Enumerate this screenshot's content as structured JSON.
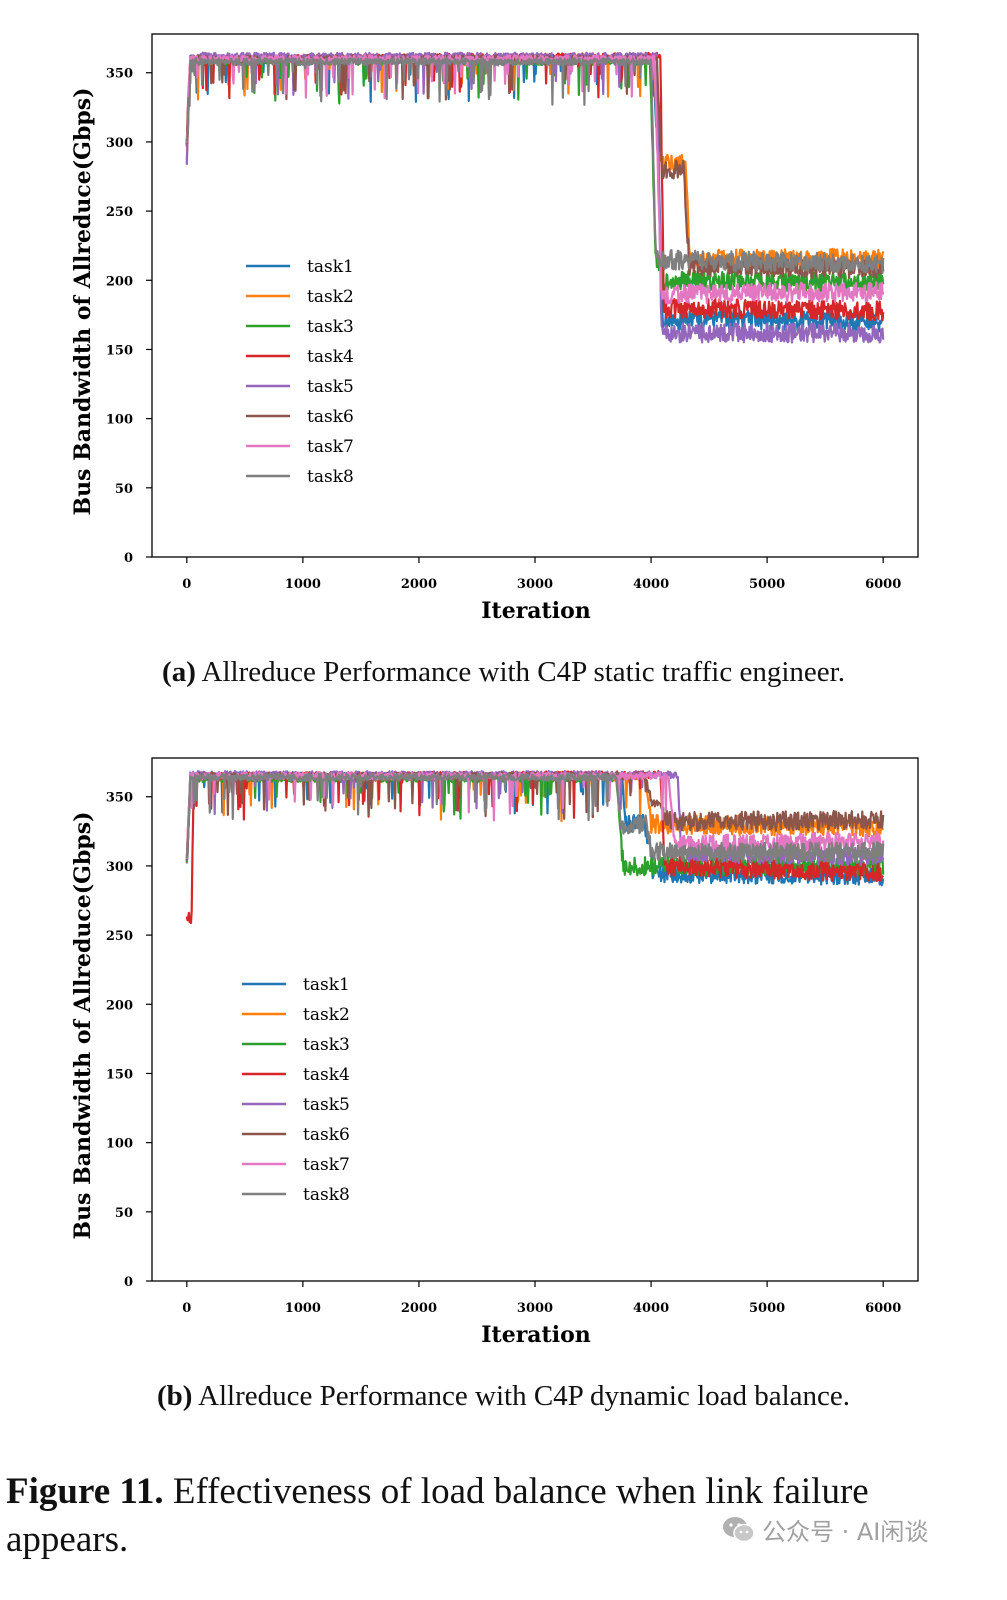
{
  "chart_data": [
    {
      "type": "line",
      "panel_label": "(a)",
      "caption": "Allreduce Performance with C4P static traffic engineer.",
      "xlabel": "Iteration",
      "ylabel": "Bus Bandwidth of Allreduce(Gbps)",
      "xlim": [
        -300,
        6300
      ],
      "ylim": [
        0,
        378
      ],
      "xticks": [
        0,
        1000,
        2000,
        3000,
        4000,
        5000,
        6000
      ],
      "yticks": [
        0,
        50,
        100,
        150,
        200,
        250,
        300,
        350
      ],
      "grid": false,
      "legend_position": "center-left",
      "series": [
        {
          "name": "task1",
          "color": "#1f77b4",
          "points": [
            [
              0,
              300
            ],
            [
              30,
              360
            ],
            [
              4000,
              360
            ],
            [
              4060,
              300
            ],
            [
              4100,
              170
            ],
            [
              4300,
              172
            ],
            [
              6000,
              170
            ]
          ]
        },
        {
          "name": "task2",
          "color": "#ff7f0e",
          "points": [
            [
              0,
              290
            ],
            [
              30,
              360
            ],
            [
              4020,
              360
            ],
            [
              4080,
              285
            ],
            [
              4300,
              285
            ],
            [
              4330,
              215
            ],
            [
              6000,
              216
            ]
          ]
        },
        {
          "name": "task3",
          "color": "#2ca02c",
          "points": [
            [
              0,
              300
            ],
            [
              30,
              358
            ],
            [
              3990,
              358
            ],
            [
              4040,
              215
            ],
            [
              4100,
              200
            ],
            [
              6000,
              198
            ]
          ]
        },
        {
          "name": "task4",
          "color": "#d62728",
          "points": [
            [
              0,
              300
            ],
            [
              30,
              360
            ],
            [
              4080,
              362
            ],
            [
              4110,
              180
            ],
            [
              6000,
              178
            ]
          ]
        },
        {
          "name": "task5",
          "color": "#9467bd",
          "points": [
            [
              0,
              285
            ],
            [
              30,
              362
            ],
            [
              4050,
              362
            ],
            [
              4090,
              162
            ],
            [
              6000,
              162
            ]
          ]
        },
        {
          "name": "task6",
          "color": "#8c564b",
          "points": [
            [
              0,
              300
            ],
            [
              30,
              360
            ],
            [
              4050,
              360
            ],
            [
              4090,
              280
            ],
            [
              4280,
              280
            ],
            [
              4330,
              210
            ],
            [
              6000,
              208
            ]
          ]
        },
        {
          "name": "task7",
          "color": "#e377c2",
          "points": [
            [
              0,
              300
            ],
            [
              30,
              360
            ],
            [
              4030,
              360
            ],
            [
              4090,
              190
            ],
            [
              6000,
              192
            ]
          ]
        },
        {
          "name": "task8",
          "color": "#7f7f7f",
          "points": [
            [
              0,
              300
            ],
            [
              30,
              358
            ],
            [
              4000,
              358
            ],
            [
              4040,
              215
            ],
            [
              6000,
              212
            ]
          ]
        }
      ]
    },
    {
      "type": "line",
      "panel_label": "(b)",
      "caption": "Allreduce Performance with C4P dynamic load balance.",
      "xlabel": "Iteration",
      "ylabel": "Bus Bandwidth of Allreduce(Gbps)",
      "xlim": [
        -300,
        6300
      ],
      "ylim": [
        0,
        378
      ],
      "xticks": [
        0,
        1000,
        2000,
        3000,
        4000,
        5000,
        6000
      ],
      "yticks": [
        0,
        50,
        100,
        150,
        200,
        250,
        300,
        350
      ],
      "grid": false,
      "legend_position": "center-left",
      "series": [
        {
          "name": "task1",
          "color": "#1f77b4",
          "points": [
            [
              0,
              300
            ],
            [
              30,
              365
            ],
            [
              3750,
              365
            ],
            [
              3780,
              330
            ],
            [
              3950,
              330
            ],
            [
              4020,
              295
            ],
            [
              6000,
              293
            ]
          ]
        },
        {
          "name": "task2",
          "color": "#ff7f0e",
          "points": [
            [
              0,
              300
            ],
            [
              30,
              364
            ],
            [
              3950,
              364
            ],
            [
              4000,
              330
            ],
            [
              6000,
              328
            ]
          ]
        },
        {
          "name": "task3",
          "color": "#2ca02c",
          "points": [
            [
              0,
              300
            ],
            [
              30,
              363
            ],
            [
              3700,
              363
            ],
            [
              3760,
              300
            ],
            [
              6000,
              300
            ]
          ]
        },
        {
          "name": "task4",
          "color": "#d62728",
          "points": [
            [
              0,
              260
            ],
            [
              40,
              260
            ],
            [
              60,
              365
            ],
            [
              4080,
              366
            ],
            [
              4120,
              300
            ],
            [
              6000,
              295
            ]
          ]
        },
        {
          "name": "task5",
          "color": "#9467bd",
          "points": [
            [
              0,
              300
            ],
            [
              30,
              366
            ],
            [
              4230,
              366
            ],
            [
              4260,
              310
            ],
            [
              6000,
              307
            ]
          ]
        },
        {
          "name": "task6",
          "color": "#8c564b",
          "points": [
            [
              0,
              300
            ],
            [
              30,
              365
            ],
            [
              3950,
              365
            ],
            [
              4010,
              345
            ],
            [
              4080,
              345
            ],
            [
              4150,
              332
            ],
            [
              6000,
              333
            ]
          ]
        },
        {
          "name": "task7",
          "color": "#e377c2",
          "points": [
            [
              0,
              300
            ],
            [
              30,
              365
            ],
            [
              4150,
              365
            ],
            [
              4200,
              315
            ],
            [
              6000,
              318
            ]
          ]
        },
        {
          "name": "task8",
          "color": "#7f7f7f",
          "points": [
            [
              0,
              300
            ],
            [
              30,
              364
            ],
            [
              3700,
              364
            ],
            [
              3740,
              330
            ],
            [
              3960,
              330
            ],
            [
              4000,
              310
            ],
            [
              6000,
              310
            ]
          ]
        }
      ]
    }
  ],
  "figure_caption": {
    "label": "Figure 11.",
    "text": "Effectiveness of load balance when link failure appears."
  },
  "watermark": {
    "text": "公众号 · AI闲谈",
    "icon": "wechat-icon"
  }
}
